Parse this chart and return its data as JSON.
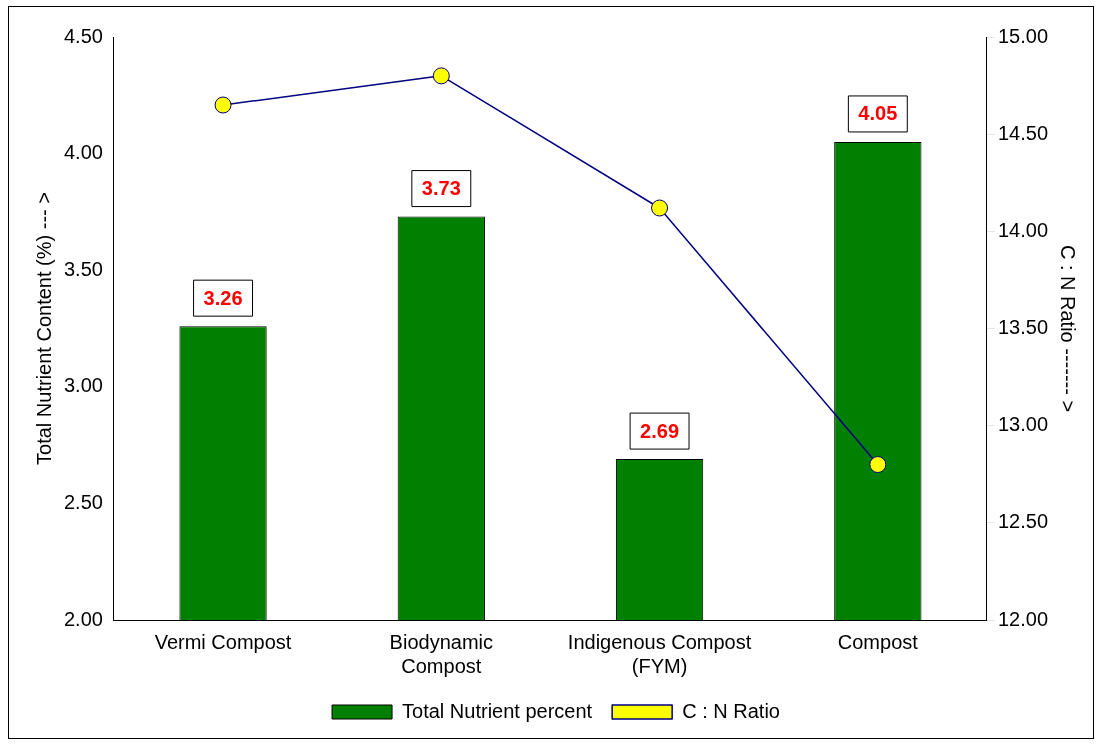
{
  "chart_data": {
    "type": "bar",
    "categories": [
      "Vermi Compost",
      "Biodynamic Compost",
      "Indigenous Compost (FYM)",
      "Compost"
    ],
    "ylabel": "Total Nutrient Content (%) --- >",
    "y2label": "C : N Ratio ------- >",
    "series": [
      {
        "name": "Total Nutrient percent",
        "color": "#007f00",
        "values": [
          3.26,
          3.73,
          2.69,
          4.05
        ],
        "value_labels": [
          "3.26",
          "3.73",
          "2.69",
          "4.05"
        ]
      },
      {
        "name": "C : N Ratio",
        "type": "line",
        "axis": "y2",
        "color": "#000080",
        "values": [
          14.65,
          14.8,
          14.12,
          12.8
        ],
        "marker": "circle"
      }
    ],
    "ylim": [
      2,
      4.5
    ],
    "yticks": [
      {
        "value": 2,
        "label": "2.00"
      },
      {
        "value": 2.5,
        "label": "2.50"
      },
      {
        "value": 3,
        "label": "3.00"
      },
      {
        "value": 3.5,
        "label": "3.50"
      },
      {
        "value": 4,
        "label": "4.00"
      },
      {
        "value": 4.5,
        "label": "4.50"
      }
    ],
    "y2lim": [
      12,
      15
    ],
    "y2ticks": [
      {
        "value": 12,
        "label": "12.00"
      },
      {
        "value": 12.5,
        "label": "12.50"
      },
      {
        "value": 13,
        "label": "13.00"
      },
      {
        "value": 13.5,
        "label": "13.50"
      },
      {
        "value": 14,
        "label": "14.00"
      },
      {
        "value": 14.5,
        "label": "14.50"
      },
      {
        "value": 15,
        "label": "15.00"
      }
    ],
    "grid": false,
    "legend": "bottom"
  }
}
